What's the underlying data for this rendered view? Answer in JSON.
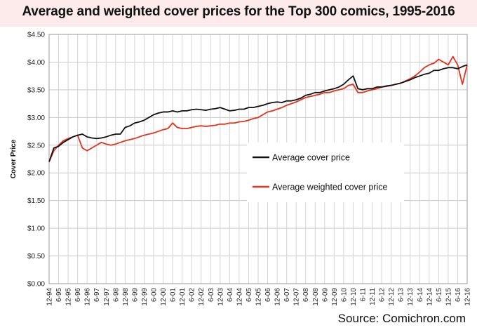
{
  "chart_data": {
    "type": "line",
    "title": "Average and weighted cover prices for the Top 300 comics, 1995-2016",
    "xlabel": "",
    "ylabel": "Cover Price",
    "ylim": [
      0,
      4.5
    ],
    "yticks": [
      "$0.00",
      "$0.50",
      "$1.00",
      "$1.50",
      "$2.00",
      "$2.50",
      "$3.00",
      "$3.50",
      "$4.00",
      "$4.50"
    ],
    "xtick_labels": [
      "12-94",
      "6-95",
      "12-95",
      "6-96",
      "12-96",
      "6-97",
      "12-97",
      "6-98",
      "12-98",
      "6-99",
      "12-99",
      "6-00",
      "12-00",
      "6-01",
      "12-01",
      "6-02",
      "12-02",
      "6-03",
      "12-03",
      "6-04",
      "12-04",
      "6-05",
      "12-05",
      "6-06",
      "12-06",
      "6-07",
      "12-07",
      "6-08",
      "12-08",
      "6-09",
      "12-09",
      "6-10",
      "12-10",
      "6-11",
      "12-11",
      "6-12",
      "12-12",
      "6-13",
      "12-13",
      "6-14",
      "12-14",
      "6-15",
      "12-15",
      "6-16",
      "12-16"
    ],
    "x_tick_times": [
      0,
      0.5,
      1,
      1.5,
      2,
      2.5,
      3,
      3.5,
      4,
      4.5,
      5,
      5.5,
      6,
      6.5,
      7,
      7.5,
      8,
      8.5,
      9,
      9.5,
      10,
      10.5,
      11,
      11.5,
      12,
      12.5,
      13,
      13.5,
      14,
      14.5,
      15,
      15.5,
      16,
      16.5,
      17,
      17.5,
      18,
      18.5,
      19,
      19.5,
      20,
      20.5,
      21,
      21.5,
      22
    ],
    "x_unit": "years since 12-94",
    "legend": [
      "Average cover price",
      "Average weighted cover price"
    ],
    "legend_position": "center-right",
    "series": [
      {
        "name": "Average cover price",
        "color": "#111111",
        "points": [
          [
            0,
            2.2
          ],
          [
            0.25,
            2.45
          ],
          [
            0.5,
            2.48
          ],
          [
            0.75,
            2.55
          ],
          [
            1,
            2.6
          ],
          [
            1.25,
            2.65
          ],
          [
            1.5,
            2.68
          ],
          [
            1.75,
            2.7
          ],
          [
            2,
            2.65
          ],
          [
            2.25,
            2.63
          ],
          [
            2.5,
            2.62
          ],
          [
            2.75,
            2.63
          ],
          [
            3,
            2.65
          ],
          [
            3.25,
            2.68
          ],
          [
            3.5,
            2.7
          ],
          [
            3.75,
            2.7
          ],
          [
            4,
            2.82
          ],
          [
            4.25,
            2.85
          ],
          [
            4.5,
            2.9
          ],
          [
            4.75,
            2.92
          ],
          [
            5,
            2.95
          ],
          [
            5.25,
            3.0
          ],
          [
            5.5,
            3.05
          ],
          [
            5.75,
            3.08
          ],
          [
            6,
            3.1
          ],
          [
            6.25,
            3.1
          ],
          [
            6.5,
            3.12
          ],
          [
            6.75,
            3.1
          ],
          [
            7,
            3.12
          ],
          [
            7.25,
            3.12
          ],
          [
            7.5,
            3.14
          ],
          [
            7.75,
            3.15
          ],
          [
            8,
            3.14
          ],
          [
            8.25,
            3.13
          ],
          [
            8.5,
            3.15
          ],
          [
            8.75,
            3.16
          ],
          [
            9,
            3.18
          ],
          [
            9.25,
            3.15
          ],
          [
            9.5,
            3.12
          ],
          [
            9.75,
            3.13
          ],
          [
            10,
            3.15
          ],
          [
            10.25,
            3.15
          ],
          [
            10.5,
            3.18
          ],
          [
            10.75,
            3.18
          ],
          [
            11,
            3.2
          ],
          [
            11.25,
            3.22
          ],
          [
            11.5,
            3.25
          ],
          [
            11.75,
            3.27
          ],
          [
            12,
            3.28
          ],
          [
            12.25,
            3.27
          ],
          [
            12.5,
            3.3
          ],
          [
            12.75,
            3.3
          ],
          [
            13,
            3.32
          ],
          [
            13.25,
            3.35
          ],
          [
            13.5,
            3.4
          ],
          [
            13.75,
            3.42
          ],
          [
            14,
            3.45
          ],
          [
            14.25,
            3.45
          ],
          [
            14.5,
            3.48
          ],
          [
            14.75,
            3.5
          ],
          [
            15,
            3.52
          ],
          [
            15.25,
            3.55
          ],
          [
            15.5,
            3.6
          ],
          [
            15.75,
            3.68
          ],
          [
            16,
            3.75
          ],
          [
            16.25,
            3.52
          ],
          [
            16.5,
            3.5
          ],
          [
            16.75,
            3.52
          ],
          [
            17,
            3.52
          ],
          [
            17.25,
            3.55
          ],
          [
            17.5,
            3.55
          ],
          [
            17.75,
            3.57
          ],
          [
            18,
            3.58
          ],
          [
            18.25,
            3.6
          ],
          [
            18.5,
            3.62
          ],
          [
            18.75,
            3.65
          ],
          [
            19,
            3.68
          ],
          [
            19.25,
            3.72
          ],
          [
            19.5,
            3.75
          ],
          [
            19.75,
            3.78
          ],
          [
            20,
            3.8
          ],
          [
            20.25,
            3.85
          ],
          [
            20.5,
            3.85
          ],
          [
            20.75,
            3.88
          ],
          [
            21,
            3.9
          ],
          [
            21.25,
            3.9
          ],
          [
            21.5,
            3.88
          ],
          [
            21.75,
            3.92
          ],
          [
            22,
            3.95
          ]
        ]
      },
      {
        "name": "Average weighted cover price",
        "color": "#e4321b",
        "points": [
          [
            0,
            2.2
          ],
          [
            0.25,
            2.4
          ],
          [
            0.5,
            2.5
          ],
          [
            0.75,
            2.58
          ],
          [
            1,
            2.62
          ],
          [
            1.25,
            2.65
          ],
          [
            1.5,
            2.68
          ],
          [
            1.75,
            2.45
          ],
          [
            2,
            2.4
          ],
          [
            2.25,
            2.45
          ],
          [
            2.5,
            2.5
          ],
          [
            2.75,
            2.55
          ],
          [
            3,
            2.52
          ],
          [
            3.25,
            2.5
          ],
          [
            3.5,
            2.52
          ],
          [
            3.75,
            2.55
          ],
          [
            4,
            2.58
          ],
          [
            4.25,
            2.6
          ],
          [
            4.5,
            2.62
          ],
          [
            4.75,
            2.65
          ],
          [
            5,
            2.68
          ],
          [
            5.25,
            2.7
          ],
          [
            5.5,
            2.72
          ],
          [
            5.75,
            2.75
          ],
          [
            6,
            2.78
          ],
          [
            6.25,
            2.8
          ],
          [
            6.5,
            2.9
          ],
          [
            6.75,
            2.82
          ],
          [
            7,
            2.8
          ],
          [
            7.25,
            2.8
          ],
          [
            7.5,
            2.82
          ],
          [
            7.75,
            2.84
          ],
          [
            8,
            2.85
          ],
          [
            8.25,
            2.84
          ],
          [
            8.5,
            2.85
          ],
          [
            8.75,
            2.86
          ],
          [
            9,
            2.88
          ],
          [
            9.25,
            2.88
          ],
          [
            9.5,
            2.9
          ],
          [
            9.75,
            2.9
          ],
          [
            10,
            2.92
          ],
          [
            10.25,
            2.93
          ],
          [
            10.5,
            2.95
          ],
          [
            10.75,
            2.98
          ],
          [
            11,
            3.0
          ],
          [
            11.25,
            3.05
          ],
          [
            11.5,
            3.1
          ],
          [
            11.75,
            3.12
          ],
          [
            12,
            3.15
          ],
          [
            12.25,
            3.18
          ],
          [
            12.5,
            3.22
          ],
          [
            12.75,
            3.25
          ],
          [
            13,
            3.28
          ],
          [
            13.25,
            3.32
          ],
          [
            13.5,
            3.36
          ],
          [
            13.75,
            3.38
          ],
          [
            14,
            3.4
          ],
          [
            14.25,
            3.42
          ],
          [
            14.5,
            3.45
          ],
          [
            14.75,
            3.45
          ],
          [
            15,
            3.48
          ],
          [
            15.25,
            3.5
          ],
          [
            15.5,
            3.52
          ],
          [
            15.75,
            3.58
          ],
          [
            16,
            3.6
          ],
          [
            16.25,
            3.45
          ],
          [
            16.5,
            3.45
          ],
          [
            16.75,
            3.48
          ],
          [
            17,
            3.5
          ],
          [
            17.25,
            3.52
          ],
          [
            17.5,
            3.55
          ],
          [
            17.75,
            3.56
          ],
          [
            18,
            3.58
          ],
          [
            18.25,
            3.6
          ],
          [
            18.5,
            3.62
          ],
          [
            18.75,
            3.66
          ],
          [
            19,
            3.7
          ],
          [
            19.25,
            3.75
          ],
          [
            19.5,
            3.82
          ],
          [
            19.75,
            3.9
          ],
          [
            20,
            3.95
          ],
          [
            20.25,
            3.98
          ],
          [
            20.5,
            4.05
          ],
          [
            20.75,
            4.0
          ],
          [
            21,
            3.95
          ],
          [
            21.25,
            4.1
          ],
          [
            21.5,
            3.95
          ],
          [
            21.75,
            3.6
          ],
          [
            22,
            3.95
          ]
        ]
      }
    ]
  },
  "source": "Source: Comichron.com"
}
